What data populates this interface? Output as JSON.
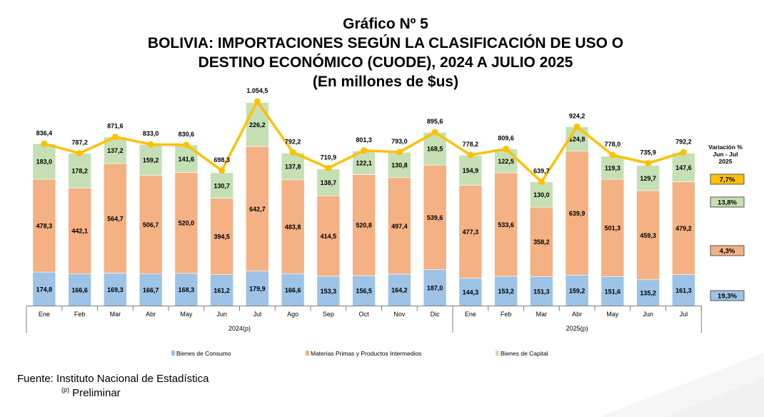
{
  "title": {
    "line1": "Gráfico Nº 5",
    "line2": "BOLIVIA: IMPORTACIONES SEGÚN LA CLASIFICACIÓN DE USO O",
    "line3": "DESTINO ECONÓMICO (CUODE), 2024 A JULIO 2025",
    "line4": "(En millones de $us)"
  },
  "chart_data": {
    "type": "bar",
    "stacked": true,
    "categories": [
      "Ene",
      "Feb",
      "Mar",
      "Abr",
      "May",
      "Jun",
      "Jul",
      "Ago",
      "Sep",
      "Oct",
      "Nov",
      "Dic",
      "Ene",
      "Feb",
      "Mar",
      "Abr",
      "May",
      "Jun",
      "Jul"
    ],
    "groups": [
      {
        "label": "2024(p)",
        "count": 12
      },
      {
        "label": "2025(p)",
        "count": 7
      }
    ],
    "series": [
      {
        "name": "Bienes de Consumo",
        "color": "#9dc3e6",
        "values": [
          174.8,
          166.6,
          169.3,
          166.7,
          168.3,
          161.2,
          179.9,
          166.6,
          153.3,
          156.5,
          164.2,
          187.0,
          144.3,
          153.2,
          151.3,
          159.2,
          151.6,
          135.2,
          161.3
        ],
        "labels": [
          "174,8",
          "166,6",
          "169,3",
          "166,7",
          "168,3",
          "161,2",
          "179,9",
          "166,6",
          "153,3",
          "156,5",
          "164,2",
          "187,0",
          "144,3",
          "153,2",
          "151,3",
          "159,2",
          "151,6",
          "135,2",
          "161,3"
        ]
      },
      {
        "name": "Materias Primas y Productos Intermedios",
        "color": "#f4b183",
        "values": [
          478.3,
          442.1,
          564.7,
          506.7,
          520.0,
          394.5,
          642.7,
          483.8,
          414.5,
          520.8,
          497.4,
          539.6,
          477.3,
          533.6,
          358.2,
          639.9,
          501.3,
          459.3,
          479.2
        ],
        "labels": [
          "478,3",
          "442,1",
          "564,7",
          "506,7",
          "520,0",
          "394,5",
          "642,7",
          "483,8",
          "414,5",
          "520,8",
          "497,4",
          "539,6",
          "477,3",
          "533,6",
          "358,2",
          "639,9",
          "501,3",
          "459,3",
          "479,2"
        ]
      },
      {
        "name": "Bienes de Capital",
        "color": "#c5e0b4",
        "values": [
          183.0,
          178.2,
          137.2,
          159.2,
          141.6,
          130.7,
          226.2,
          137.8,
          138.7,
          122.1,
          130.8,
          168.5,
          154.9,
          122.5,
          130.0,
          124.8,
          119.3,
          129.7,
          147.6
        ],
        "labels": [
          "183,0",
          "178,2",
          "137,2",
          "159,2",
          "141,6",
          "130,7",
          "226,2",
          "137,8",
          "138,7",
          "122,1",
          "130,8",
          "168,5",
          "154,9",
          "122,5",
          "130,0",
          "124,8",
          "119,3",
          "129,7",
          "147,6"
        ]
      }
    ],
    "total": {
      "color": "#ffc000",
      "values": [
        836.4,
        787.2,
        871.6,
        833.0,
        830.6,
        698.3,
        1054.5,
        792.2,
        710.9,
        801.3,
        793.0,
        895.6,
        778.2,
        809.6,
        639.7,
        924.2,
        778.0,
        735.9,
        792.2
      ],
      "labels": [
        "836,4",
        "787,2",
        "871,6",
        "833,0",
        "830,6",
        "698,3",
        "1.054,5",
        "792,2",
        "710,9",
        "801,3",
        "793,0",
        "895,6",
        "778,2",
        "809,6",
        "639,7",
        "924,2",
        "778,0",
        "735,9",
        "792,2"
      ]
    },
    "ylim": [
      0,
      1130
    ],
    "variation": {
      "title_lines": [
        "Variación %",
        "Jun - Jul",
        "2025"
      ],
      "items": [
        {
          "label": "7,7%",
          "color": "#ffc000"
        },
        {
          "label": "13,8%",
          "color": "#c5e0b4"
        },
        {
          "label": "4,3%",
          "color": "#f4b183"
        },
        {
          "label": "19,3%",
          "color": "#9dc3e6"
        }
      ]
    },
    "legend": [
      {
        "name": "Bienes de Consumo",
        "color": "#9dc3e6"
      },
      {
        "name": "Materias Primas y Productos Intermedios",
        "color": "#f4b183"
      },
      {
        "name": "Bienes de Capital",
        "color": "#c5e0b4"
      }
    ]
  },
  "footer": {
    "source": "Fuente: Instituto Nacional de Estadística",
    "note_sup": "(p)",
    "note": " Preliminar"
  }
}
